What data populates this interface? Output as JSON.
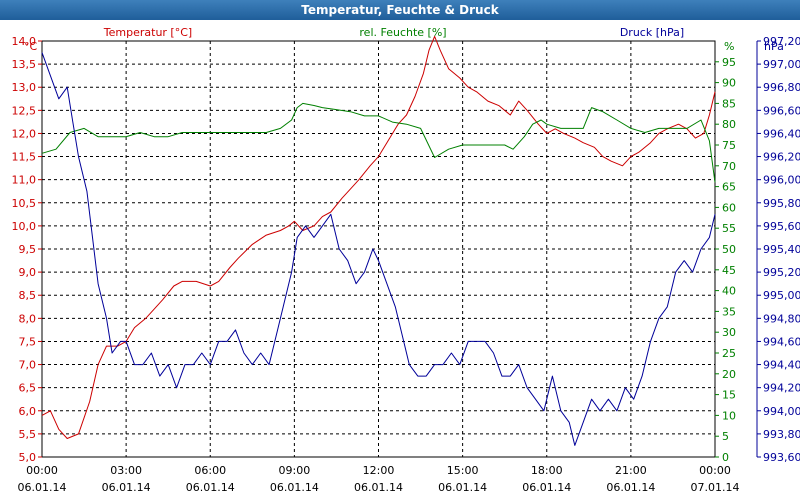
{
  "window": {
    "title": "Temperatur, Feuchte & Druck"
  },
  "colors": {
    "temperature": "#cc0000",
    "humidity": "#008000",
    "pressure": "#000099",
    "grid": "#000000",
    "background": "#ffffff"
  },
  "chart_data": {
    "type": "line",
    "title": "Temperatur, Feuchte & Druck",
    "x_unit": "hours since 06.01.14 00:00",
    "xlim": [
      0,
      24
    ],
    "x_ticks": [
      {
        "time": "00:00",
        "date": "06.01.14"
      },
      {
        "time": "03:00",
        "date": "06.01.14"
      },
      {
        "time": "06:00",
        "date": "06.01.14"
      },
      {
        "time": "09:00",
        "date": "06.01.14"
      },
      {
        "time": "12:00",
        "date": "06.01.14"
      },
      {
        "time": "15:00",
        "date": "06.01.14"
      },
      {
        "time": "18:00",
        "date": "06.01.14"
      },
      {
        "time": "21:00",
        "date": "06.01.14"
      },
      {
        "time": "00:00",
        "date": "07.01.14"
      }
    ],
    "axes": {
      "temperature": {
        "label": "Temperatur [°C]",
        "unit": "°C",
        "ylim": [
          5.0,
          14.0
        ],
        "ticks": [
          "5,0",
          "5,5",
          "6,0",
          "6,5",
          "7,0",
          "7,5",
          "8,0",
          "8,5",
          "9,0",
          "9,5",
          "10,0",
          "10,5",
          "11,0",
          "11,5",
          "12,0",
          "12,5",
          "13,0",
          "13,5",
          "14,0"
        ]
      },
      "humidity": {
        "label": "rel. Feuchte [%]",
        "unit": "%",
        "ylim": [
          0,
          100
        ],
        "ticks": [
          "0",
          "5",
          "10",
          "15",
          "20",
          "25",
          "30",
          "35",
          "40",
          "45",
          "50",
          "55",
          "60",
          "65",
          "70",
          "75",
          "80",
          "85",
          "90",
          "95"
        ]
      },
      "pressure": {
        "label": "Druck [hPa]",
        "unit": "hPa",
        "ylim": [
          993.6,
          997.2
        ],
        "ticks": [
          "993,60",
          "993,80",
          "994,00",
          "994,20",
          "994,40",
          "994,60",
          "994,80",
          "995,00",
          "995,20",
          "995,40",
          "995,60",
          "995,80",
          "996,00",
          "996,20",
          "996,40",
          "996,60",
          "996,80",
          "997,00",
          "997,20"
        ]
      }
    },
    "series": [
      {
        "name": "Temperatur",
        "axis": "temperature",
        "points": [
          [
            0,
            5.9
          ],
          [
            0.3,
            6.0
          ],
          [
            0.6,
            5.6
          ],
          [
            0.9,
            5.4
          ],
          [
            1.3,
            5.5
          ],
          [
            1.7,
            6.2
          ],
          [
            2.0,
            7.0
          ],
          [
            2.3,
            7.4
          ],
          [
            2.7,
            7.4
          ],
          [
            3.0,
            7.5
          ],
          [
            3.3,
            7.8
          ],
          [
            3.7,
            8.0
          ],
          [
            4.0,
            8.2
          ],
          [
            4.3,
            8.4
          ],
          [
            4.7,
            8.7
          ],
          [
            5.0,
            8.8
          ],
          [
            5.5,
            8.8
          ],
          [
            6.0,
            8.7
          ],
          [
            6.3,
            8.8
          ],
          [
            6.7,
            9.1
          ],
          [
            7.0,
            9.3
          ],
          [
            7.5,
            9.6
          ],
          [
            8.0,
            9.8
          ],
          [
            8.5,
            9.9
          ],
          [
            8.8,
            10.0
          ],
          [
            9.0,
            10.1
          ],
          [
            9.3,
            9.9
          ],
          [
            9.7,
            10.0
          ],
          [
            10.0,
            10.2
          ],
          [
            10.3,
            10.3
          ],
          [
            10.7,
            10.6
          ],
          [
            11.0,
            10.8
          ],
          [
            11.3,
            11.0
          ],
          [
            11.7,
            11.3
          ],
          [
            12.0,
            11.5
          ],
          [
            12.3,
            11.8
          ],
          [
            12.7,
            12.2
          ],
          [
            13.0,
            12.4
          ],
          [
            13.3,
            12.8
          ],
          [
            13.6,
            13.3
          ],
          [
            13.8,
            13.8
          ],
          [
            14.0,
            14.1
          ],
          [
            14.2,
            13.8
          ],
          [
            14.5,
            13.4
          ],
          [
            14.9,
            13.2
          ],
          [
            15.2,
            13.0
          ],
          [
            15.5,
            12.9
          ],
          [
            15.9,
            12.7
          ],
          [
            16.3,
            12.6
          ],
          [
            16.7,
            12.4
          ],
          [
            17.0,
            12.7
          ],
          [
            17.3,
            12.5
          ],
          [
            17.7,
            12.2
          ],
          [
            18.0,
            12.0
          ],
          [
            18.3,
            12.1
          ],
          [
            18.6,
            12.0
          ],
          [
            19.0,
            11.9
          ],
          [
            19.3,
            11.8
          ],
          [
            19.7,
            11.7
          ],
          [
            20.0,
            11.5
          ],
          [
            20.3,
            11.4
          ],
          [
            20.7,
            11.3
          ],
          [
            21.0,
            11.5
          ],
          [
            21.3,
            11.6
          ],
          [
            21.7,
            11.8
          ],
          [
            22.0,
            12.0
          ],
          [
            22.3,
            12.1
          ],
          [
            22.7,
            12.2
          ],
          [
            23.0,
            12.1
          ],
          [
            23.3,
            11.9
          ],
          [
            23.6,
            12.0
          ],
          [
            23.8,
            12.4
          ],
          [
            24.0,
            12.9
          ]
        ]
      },
      {
        "name": "rel. Feuchte",
        "axis": "humidity",
        "points": [
          [
            0,
            73
          ],
          [
            0.5,
            74
          ],
          [
            1.0,
            78
          ],
          [
            1.5,
            79
          ],
          [
            2.0,
            77
          ],
          [
            2.5,
            77
          ],
          [
            3.0,
            77
          ],
          [
            3.5,
            78
          ],
          [
            4.0,
            77
          ],
          [
            4.5,
            77
          ],
          [
            5.0,
            78
          ],
          [
            5.5,
            78
          ],
          [
            6.0,
            78
          ],
          [
            6.5,
            78
          ],
          [
            7.0,
            78
          ],
          [
            7.5,
            78
          ],
          [
            8.0,
            78
          ],
          [
            8.5,
            79
          ],
          [
            8.9,
            81
          ],
          [
            9.1,
            84
          ],
          [
            9.3,
            85
          ],
          [
            9.7,
            84.5
          ],
          [
            10.0,
            84
          ],
          [
            10.5,
            83.5
          ],
          [
            11.0,
            83
          ],
          [
            11.5,
            82
          ],
          [
            12.0,
            82
          ],
          [
            12.5,
            80.5
          ],
          [
            13.0,
            80
          ],
          [
            13.5,
            79
          ],
          [
            14.0,
            72
          ],
          [
            14.5,
            74
          ],
          [
            15.0,
            75
          ],
          [
            15.5,
            75
          ],
          [
            16.0,
            75
          ],
          [
            16.5,
            75
          ],
          [
            16.8,
            74
          ],
          [
            17.2,
            77
          ],
          [
            17.5,
            80
          ],
          [
            17.8,
            81
          ],
          [
            18.0,
            80
          ],
          [
            18.5,
            79
          ],
          [
            19.0,
            79
          ],
          [
            19.3,
            79
          ],
          [
            19.6,
            84
          ],
          [
            20.0,
            83
          ],
          [
            20.5,
            81
          ],
          [
            21.0,
            79
          ],
          [
            21.5,
            78
          ],
          [
            22.0,
            79
          ],
          [
            22.5,
            79
          ],
          [
            23.0,
            79
          ],
          [
            23.5,
            81
          ],
          [
            23.8,
            76
          ],
          [
            24.0,
            66
          ]
        ]
      },
      {
        "name": "Druck",
        "axis": "pressure",
        "points": [
          [
            0,
            997.1
          ],
          [
            0.3,
            996.9
          ],
          [
            0.6,
            996.7
          ],
          [
            0.9,
            996.8
          ],
          [
            1.1,
            996.5
          ],
          [
            1.3,
            996.2
          ],
          [
            1.6,
            995.9
          ],
          [
            1.8,
            995.5
          ],
          [
            2.0,
            995.1
          ],
          [
            2.3,
            994.8
          ],
          [
            2.5,
            994.5
          ],
          [
            2.8,
            994.6
          ],
          [
            3.0,
            994.6
          ],
          [
            3.3,
            994.4
          ],
          [
            3.6,
            994.4
          ],
          [
            3.9,
            994.5
          ],
          [
            4.2,
            994.3
          ],
          [
            4.5,
            994.4
          ],
          [
            4.8,
            994.2
          ],
          [
            5.1,
            994.4
          ],
          [
            5.4,
            994.4
          ],
          [
            5.7,
            994.5
          ],
          [
            6.0,
            994.4
          ],
          [
            6.3,
            994.6
          ],
          [
            6.6,
            994.6
          ],
          [
            6.9,
            994.7
          ],
          [
            7.2,
            994.5
          ],
          [
            7.5,
            994.4
          ],
          [
            7.8,
            994.5
          ],
          [
            8.1,
            994.4
          ],
          [
            8.4,
            994.7
          ],
          [
            8.6,
            994.9
          ],
          [
            8.9,
            995.2
          ],
          [
            9.1,
            995.5
          ],
          [
            9.4,
            995.6
          ],
          [
            9.7,
            995.5
          ],
          [
            10.0,
            995.6
          ],
          [
            10.3,
            995.7
          ],
          [
            10.6,
            995.4
          ],
          [
            10.9,
            995.3
          ],
          [
            11.2,
            995.1
          ],
          [
            11.5,
            995.2
          ],
          [
            11.8,
            995.4
          ],
          [
            12.0,
            995.3
          ],
          [
            12.3,
            995.1
          ],
          [
            12.6,
            994.9
          ],
          [
            12.9,
            994.6
          ],
          [
            13.1,
            994.4
          ],
          [
            13.4,
            994.3
          ],
          [
            13.7,
            994.3
          ],
          [
            14.0,
            994.4
          ],
          [
            14.3,
            994.4
          ],
          [
            14.6,
            994.5
          ],
          [
            14.9,
            994.4
          ],
          [
            15.2,
            994.6
          ],
          [
            15.5,
            994.6
          ],
          [
            15.8,
            994.6
          ],
          [
            16.1,
            994.5
          ],
          [
            16.4,
            994.3
          ],
          [
            16.7,
            994.3
          ],
          [
            17.0,
            994.4
          ],
          [
            17.3,
            994.2
          ],
          [
            17.6,
            994.1
          ],
          [
            17.9,
            994.0
          ],
          [
            18.2,
            994.3
          ],
          [
            18.5,
            994.0
          ],
          [
            18.8,
            993.9
          ],
          [
            19.0,
            993.7
          ],
          [
            19.3,
            993.9
          ],
          [
            19.6,
            994.1
          ],
          [
            19.9,
            994.0
          ],
          [
            20.2,
            994.1
          ],
          [
            20.5,
            994.0
          ],
          [
            20.8,
            994.2
          ],
          [
            21.1,
            994.1
          ],
          [
            21.4,
            994.3
          ],
          [
            21.7,
            994.6
          ],
          [
            22.0,
            994.8
          ],
          [
            22.3,
            994.9
          ],
          [
            22.6,
            995.2
          ],
          [
            22.9,
            995.3
          ],
          [
            23.2,
            995.2
          ],
          [
            23.5,
            995.4
          ],
          [
            23.8,
            995.5
          ],
          [
            24.0,
            995.7
          ]
        ]
      }
    ]
  }
}
